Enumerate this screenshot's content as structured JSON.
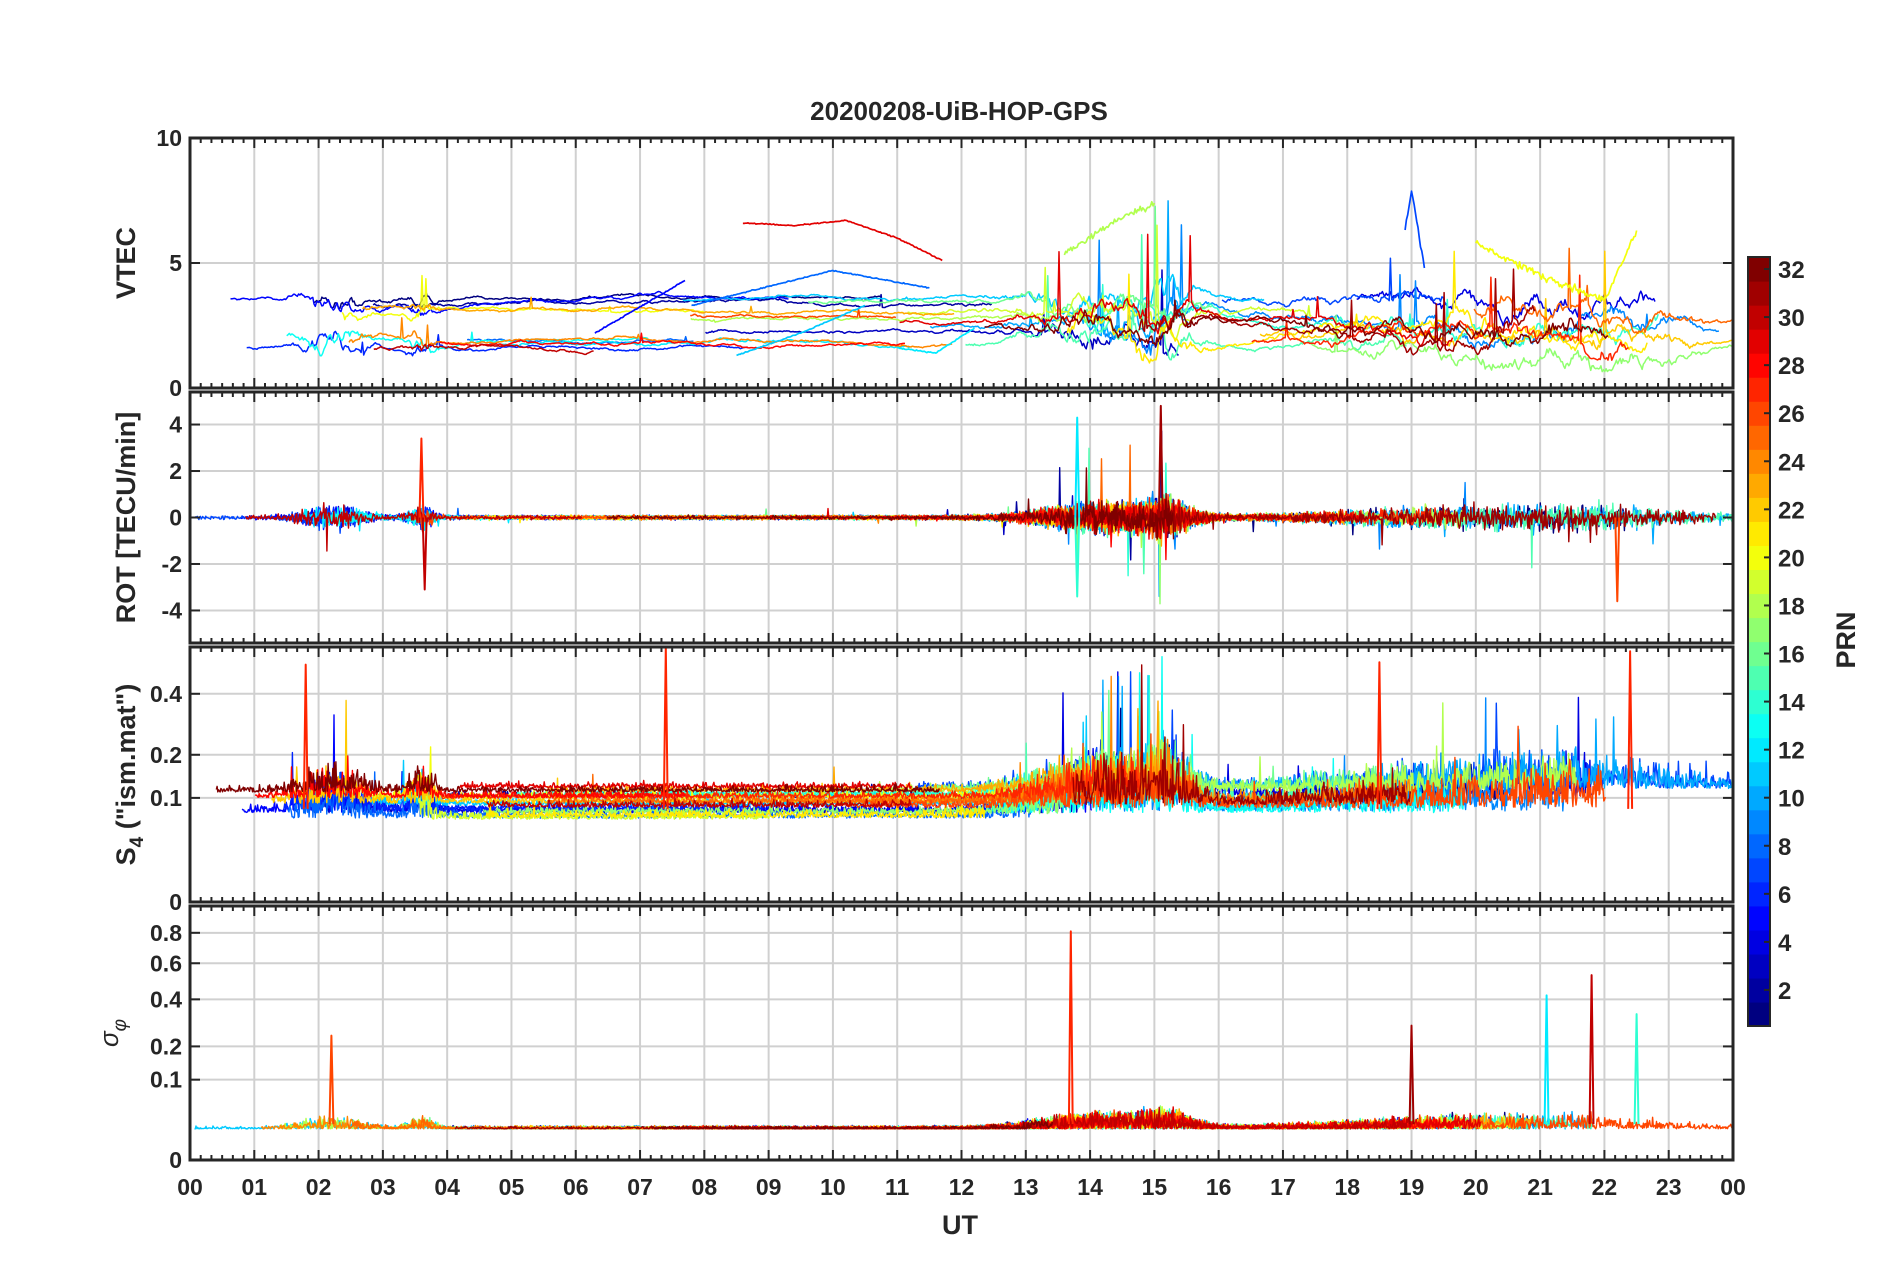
{
  "chart_data": [
    {
      "type": "line",
      "title": "20200208-UiB-HOP-GPS",
      "xlabel": "",
      "ylabel": "VTEC",
      "xlim": [
        0,
        24
      ],
      "ylim": [
        0,
        10
      ],
      "yticks": [
        "0",
        "5",
        "10"
      ],
      "yticks_values": [
        0,
        5,
        10
      ],
      "grid": true,
      "series_note": "one trace per GPS satellite PRN 1-32, colored by PRN",
      "series": [
        {
          "name": "PRN 5",
          "prn": 5,
          "x": [
            6.3,
            7.7
          ],
          "y": [
            2.2,
            4.3
          ]
        },
        {
          "name": "PRN 8",
          "prn": 8,
          "x": [
            7.8,
            10.0,
            11.5
          ],
          "y": [
            3.3,
            4.7,
            4.0
          ]
        },
        {
          "name": "PRN 11",
          "prn": 11,
          "x": [
            8.5,
            9.5,
            10.5
          ],
          "y": [
            1.3,
            2.2,
            3.3
          ]
        },
        {
          "name": "PRN 12",
          "prn": 12,
          "x": [
            11.0,
            11.6,
            12.2
          ],
          "y": [
            1.6,
            1.4,
            2.4
          ]
        },
        {
          "name": "PRN 18",
          "prn": 18,
          "x": [
            13.6,
            14.5,
            15.0
          ],
          "y": [
            5.4,
            6.8,
            7.4
          ]
        },
        {
          "name": "PRN 29",
          "prn": 29,
          "x": [
            8.6,
            9.4,
            10.2,
            11.0,
            11.7
          ],
          "y": [
            6.6,
            6.5,
            6.7,
            6.0,
            5.1
          ]
        },
        {
          "name": "PRN 7",
          "prn": 7,
          "x": [
            18.9,
            19.0,
            19.2
          ],
          "y": [
            6.3,
            7.9,
            4.8
          ]
        },
        {
          "name": "PRN 20",
          "prn": 20,
          "x": [
            20.0,
            21.0,
            22.0,
            22.5
          ],
          "y": [
            5.8,
            4.5,
            3.5,
            6.3
          ]
        }
      ]
    },
    {
      "type": "line",
      "title": "",
      "xlabel": "",
      "ylabel": "ROT [TECU/min]",
      "xlim": [
        0,
        24
      ],
      "ylim": [
        -5.4,
        5.4
      ],
      "yticks": [
        "-4",
        "-2",
        "0",
        "2",
        "4"
      ],
      "yticks_values": [
        -4,
        -2,
        0,
        2,
        4
      ],
      "grid": true,
      "peaks": [
        {
          "x": 3.6,
          "y": 3.4
        },
        {
          "x": 3.65,
          "y": -3.1
        },
        {
          "x": 13.8,
          "y": 4.3
        },
        {
          "x": 13.8,
          "y": -3.4
        },
        {
          "x": 15.1,
          "y": 4.8
        },
        {
          "x": 22.2,
          "y": -3.6
        }
      ]
    },
    {
      "type": "line",
      "title": "",
      "xlabel": "",
      "ylabel": "S4 (\"ism.mat\")",
      "ylabel_main": "S",
      "ylabel_sub": "4",
      "ylabel_rest": " (\"ism.mat\")",
      "xlim": [
        0,
        24
      ],
      "ylim": [
        0,
        0.6
      ],
      "yscale": "sqrt",
      "yticks": [
        "0",
        "0.1",
        "0.2",
        "0.4"
      ],
      "yticks_values": [
        0,
        0.1,
        0.2,
        0.4
      ],
      "grid": true,
      "peaks": [
        {
          "x": 7.4,
          "y": 0.6
        },
        {
          "x": 22.4,
          "y": 0.58
        },
        {
          "x": 1.8,
          "y": 0.52
        },
        {
          "x": 18.5,
          "y": 0.53
        }
      ]
    },
    {
      "type": "line",
      "title": "",
      "xlabel": "UT",
      "ylabel": "σφ",
      "ylabel_main": "σ",
      "ylabel_sub": "φ",
      "xlim": [
        0,
        24
      ],
      "ylim": [
        0,
        1.0
      ],
      "yscale": "sqrt",
      "yticks": [
        "0",
        "0.1",
        "0.2",
        "0.4",
        "0.6",
        "0.8"
      ],
      "yticks_values": [
        0,
        0.1,
        0.2,
        0.4,
        0.6,
        0.8
      ],
      "xticks": [
        "00",
        "01",
        "02",
        "03",
        "04",
        "05",
        "06",
        "07",
        "08",
        "09",
        "10",
        "11",
        "12",
        "13",
        "14",
        "15",
        "16",
        "17",
        "18",
        "19",
        "20",
        "21",
        "22",
        "23",
        "00"
      ],
      "grid": true,
      "peaks": [
        {
          "x": 13.7,
          "y": 0.81
        },
        {
          "x": 21.8,
          "y": 0.53
        },
        {
          "x": 21.1,
          "y": 0.42
        },
        {
          "x": 22.5,
          "y": 0.33
        },
        {
          "x": 19.0,
          "y": 0.28
        },
        {
          "x": 2.2,
          "y": 0.24
        }
      ]
    }
  ],
  "colorbar": {
    "label": "PRN",
    "min": 1,
    "max": 32,
    "ticks": [
      "2",
      "4",
      "6",
      "8",
      "10",
      "12",
      "14",
      "16",
      "18",
      "20",
      "22",
      "24",
      "26",
      "28",
      "30",
      "32"
    ],
    "ticks_values": [
      2,
      4,
      6,
      8,
      10,
      12,
      14,
      16,
      18,
      20,
      22,
      24,
      26,
      28,
      30,
      32
    ],
    "colormap": "jet",
    "levels": 32
  },
  "colors": {
    "axis": "#262626",
    "grid": "#d0d0d0",
    "background": "#ffffff"
  }
}
